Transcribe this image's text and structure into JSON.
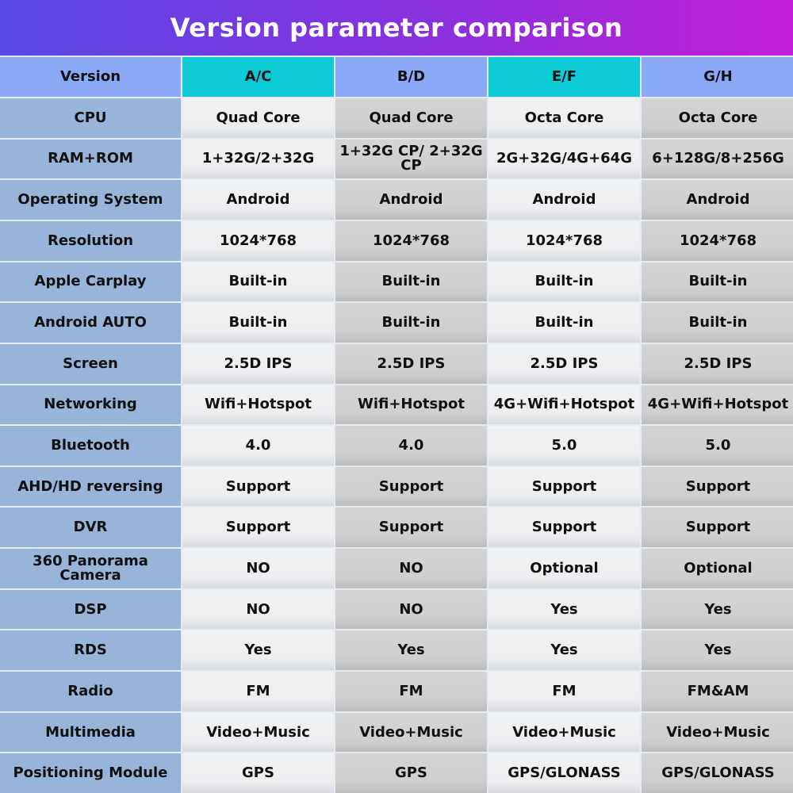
{
  "title": "Version parameter comparison",
  "header": [
    "Version",
    "A/C",
    "B/D",
    "E/F",
    "G/H"
  ],
  "rows": [
    [
      "CPU",
      "Quad Core",
      "Quad Core",
      "Octa Core",
      "Octa Core"
    ],
    [
      "RAM+ROM",
      "1+32G/2+32G",
      "1+32G CP/ 2+32G CP",
      "2G+32G/4G+64G",
      "6+128G/8+256G"
    ],
    [
      "Operating System",
      "Android",
      "Android",
      "Android",
      "Android"
    ],
    [
      "Resolution",
      "1024*768",
      "1024*768",
      "1024*768",
      "1024*768"
    ],
    [
      "Apple Carplay",
      "Built-in",
      "Built-in",
      "Built-in",
      "Built-in"
    ],
    [
      "Android AUTO",
      "Built-in",
      "Built-in",
      "Built-in",
      "Built-in"
    ],
    [
      "Screen",
      "2.5D IPS",
      "2.5D IPS",
      "2.5D IPS",
      "2.5D IPS"
    ],
    [
      "Networking",
      "Wifi+Hotspot",
      "Wifi+Hotspot",
      "4G+Wifi+Hotspot",
      "4G+Wifi+Hotspot"
    ],
    [
      "Bluetooth",
      "4.0",
      "4.0",
      "5.0",
      "5.0"
    ],
    [
      "AHD/HD reversing",
      "Support",
      "Support",
      "Support",
      "Support"
    ],
    [
      "DVR",
      "Support",
      "Support",
      "Support",
      "Support"
    ],
    [
      "360 Panorama Camera",
      "NO",
      "NO",
      "Optional",
      "Optional"
    ],
    [
      "DSP",
      "NO",
      "NO",
      "Yes",
      "Yes"
    ],
    [
      "RDS",
      "Yes",
      "Yes",
      "Yes",
      "Yes"
    ],
    [
      "Radio",
      "FM",
      "FM",
      "FM",
      "FM&AM"
    ],
    [
      "Multimedia",
      "Video+Music",
      "Video+Music",
      "Video+Music",
      "Video+Music"
    ],
    [
      "Positioning Module",
      "GPS",
      "GPS",
      "GPS/GLONASS",
      "GPS/GLONASS"
    ]
  ],
  "colors": {
    "title_gradient_start": "#5848e6",
    "title_gradient_end": "#c21ed6",
    "header_cyan": "#0ccbd6",
    "header_blue": "#8aaaf8",
    "label_bg": "#98b4d8"
  }
}
